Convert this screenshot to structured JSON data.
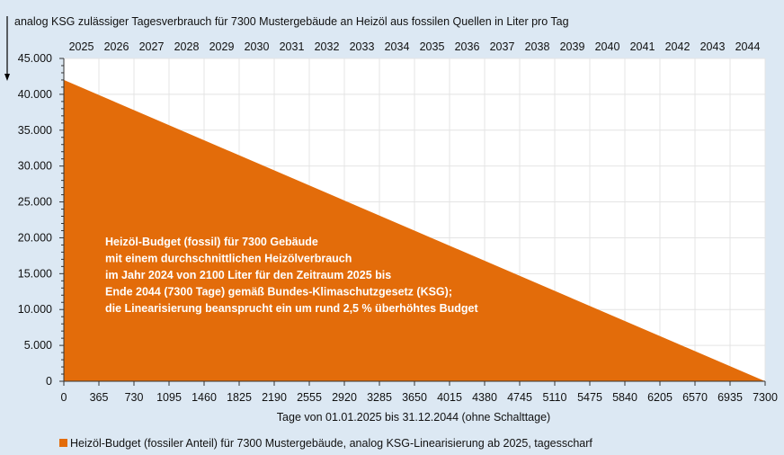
{
  "chart_data": {
    "type": "area",
    "title": "analog KSG zulässiger Tagesverbrauch für 7300 Mustergebäude an Heizöl aus fossilen Quellen in Liter pro Tag",
    "xlabel": "Tage von 01.01.2025 bis 31.12.2044  (ohne Schalttage)",
    "ylabel": "",
    "xlim": [
      0,
      7300
    ],
    "ylim": [
      0,
      45000
    ],
    "x_ticks": [
      0,
      365,
      730,
      1095,
      1460,
      1825,
      2190,
      2555,
      2920,
      3285,
      3650,
      4015,
      4380,
      4745,
      5110,
      5475,
      5840,
      6205,
      6570,
      6935,
      7300
    ],
    "y_ticks": [
      0,
      5000,
      10000,
      15000,
      20000,
      25000,
      30000,
      35000,
      40000,
      45000
    ],
    "y_tick_labels": [
      "0",
      "5.000",
      "10.000",
      "15.000",
      "20.000",
      "25.000",
      "30.000",
      "35.000",
      "40.000",
      "45.000"
    ],
    "secondary_x_labels": [
      "2025",
      "2026",
      "2027",
      "2028",
      "2029",
      "2030",
      "2031",
      "2032",
      "2033",
      "2034",
      "2035",
      "2036",
      "2037",
      "2038",
      "2039",
      "2040",
      "2041",
      "2042",
      "2043",
      "2044"
    ],
    "grid": true,
    "legend_position": "bottom-left",
    "series": [
      {
        "name": "Heizöl-Budget (fossiler Anteil) für 7300 Mustergebäude, analog KSG-Linearisierung ab 2025, tagesscharf",
        "x": [
          0,
          7300
        ],
        "y": [
          42000,
          0
        ],
        "color": "#e36c0a"
      }
    ],
    "annotation": [
      "Heizöl-Budget (fossil) für 7300 Gebäude",
      "mit einem durchschnittlichen Heizölverbrauch",
      "im Jahr 2024 von 2100 Liter für den Zeitraum 2025 bis",
      "Ende 2044 (7300 Tage) gemäß Bundes-Klimaschutzgesetz (KSG);",
      "die Linearisierung beansprucht ein um rund 2,5 % überhöhtes Budget"
    ]
  }
}
